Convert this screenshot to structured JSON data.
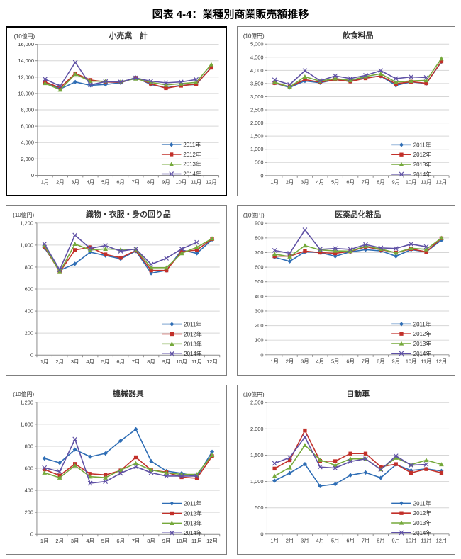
{
  "page": {
    "title": "図表 4-4：業種別商業販売額推移"
  },
  "palette": {
    "y2011": "#2E6DB5",
    "y2012": "#C2302A",
    "y2013": "#75A93B",
    "y2014": "#5F51A5",
    "grid": "#D6D6D6",
    "axis": "#8C8C8C",
    "tick_text": "#333333"
  },
  "legend_labels": [
    "2011年",
    "2012年",
    "2013年",
    "2014年"
  ],
  "chart_data": [
    {
      "type": "line",
      "title": "小売業　計",
      "unit": "(10億円)",
      "categories": [
        "1月",
        "2月",
        "3月",
        "4月",
        "5月",
        "6月",
        "7月",
        "8月",
        "9月",
        "10月",
        "11月",
        "12月"
      ],
      "y_min": 0,
      "y_max": 16000,
      "y_step": 2000,
      "grid": true,
      "legend_position": "bottom-right",
      "series": [
        {
          "name": "2011年",
          "marker": "diamond",
          "color_key": "y2011",
          "values": [
            11350,
            10550,
            11400,
            11000,
            11100,
            11300,
            11950,
            11100,
            10700,
            11000,
            11100,
            13200
          ]
        },
        {
          "name": "2012年",
          "marker": "square",
          "color_key": "y2012",
          "values": [
            11400,
            10700,
            12450,
            11650,
            11400,
            11350,
            11900,
            11200,
            10650,
            10950,
            11150,
            13150
          ]
        },
        {
          "name": "2013年",
          "marker": "triangle",
          "color_key": "y2013",
          "values": [
            11250,
            10450,
            12350,
            11500,
            11500,
            11450,
            11800,
            11350,
            11050,
            11200,
            11350,
            13550
          ]
        },
        {
          "name": "2014年",
          "marker": "x",
          "color_key": "y2014",
          "values": [
            11750,
            10900,
            13800,
            11050,
            11450,
            11400,
            11900,
            11500,
            11300,
            11400,
            11700,
            null
          ]
        }
      ]
    },
    {
      "type": "line",
      "title": "飲食料品",
      "unit": "(10億円)",
      "categories": [
        "1月",
        "2月",
        "3月",
        "4月",
        "5月",
        "6月",
        "7月",
        "8月",
        "9月",
        "10月",
        "11月",
        "12月"
      ],
      "y_min": 0,
      "y_max": 5000,
      "y_step": 500,
      "grid": true,
      "legend_position": "bottom-right",
      "series": [
        {
          "name": "2011年",
          "marker": "diamond",
          "color_key": "y2011",
          "values": [
            3520,
            3350,
            3600,
            3530,
            3650,
            3580,
            3730,
            3780,
            3430,
            3560,
            3500,
            4330
          ]
        },
        {
          "name": "2012年",
          "marker": "square",
          "color_key": "y2012",
          "values": [
            3520,
            3380,
            3650,
            3550,
            3650,
            3580,
            3700,
            3790,
            3490,
            3570,
            3510,
            4340
          ]
        },
        {
          "name": "2013年",
          "marker": "triangle",
          "color_key": "y2013",
          "values": [
            3550,
            3370,
            3760,
            3590,
            3690,
            3620,
            3770,
            3870,
            3550,
            3600,
            3620,
            4450
          ]
        },
        {
          "name": "2014年",
          "marker": "x",
          "color_key": "y2014",
          "values": [
            3640,
            3460,
            3990,
            3610,
            3790,
            3690,
            3810,
            3990,
            3690,
            3750,
            3730,
            null
          ]
        }
      ]
    },
    {
      "type": "line",
      "title": "織物・衣服・身の回り品",
      "unit": "(10億円)",
      "categories": [
        "1月",
        "2月",
        "3月",
        "4月",
        "5月",
        "6月",
        "7月",
        "8月",
        "9月",
        "10月",
        "11月",
        "12月"
      ],
      "y_min": 0,
      "y_max": 1200,
      "y_step": 200,
      "grid": true,
      "legend_position": "bottom-right",
      "series": [
        {
          "name": "2011年",
          "marker": "diamond",
          "color_key": "y2011",
          "values": [
            975,
            770,
            830,
            935,
            905,
            875,
            945,
            745,
            770,
            955,
            925,
            1050
          ]
        },
        {
          "name": "2012年",
          "marker": "square",
          "color_key": "y2012",
          "values": [
            985,
            755,
            955,
            980,
            915,
            885,
            950,
            770,
            770,
            940,
            955,
            1055
          ]
        },
        {
          "name": "2013年",
          "marker": "triangle",
          "color_key": "y2013",
          "values": [
            995,
            755,
            1010,
            955,
            965,
            960,
            960,
            795,
            795,
            925,
            980,
            1060
          ]
        },
        {
          "name": "2014年",
          "marker": "x",
          "color_key": "y2014",
          "values": [
            1010,
            775,
            1090,
            970,
            995,
            945,
            965,
            825,
            880,
            965,
            1025,
            null
          ]
        }
      ]
    },
    {
      "type": "line",
      "title": "医薬品化粧品",
      "unit": "(10億円)",
      "categories": [
        "1月",
        "2月",
        "3月",
        "4月",
        "5月",
        "6月",
        "7月",
        "8月",
        "9月",
        "10月",
        "11月",
        "12月"
      ],
      "y_min": 0,
      "y_max": 900,
      "y_step": 100,
      "grid": true,
      "legend_position": "bottom-right",
      "series": [
        {
          "name": "2011年",
          "marker": "diamond",
          "color_key": "y2011",
          "values": [
            668,
            640,
            705,
            700,
            675,
            705,
            720,
            712,
            675,
            720,
            705,
            785
          ]
        },
        {
          "name": "2012年",
          "marker": "square",
          "color_key": "y2012",
          "values": [
            675,
            675,
            710,
            700,
            695,
            708,
            740,
            720,
            700,
            725,
            705,
            798
          ]
        },
        {
          "name": "2013年",
          "marker": "triangle",
          "color_key": "y2013",
          "values": [
            690,
            672,
            748,
            718,
            712,
            710,
            745,
            725,
            698,
            730,
            722,
            800
          ]
        },
        {
          "name": "2014年",
          "marker": "x",
          "color_key": "y2014",
          "values": [
            715,
            695,
            855,
            722,
            728,
            722,
            755,
            732,
            728,
            758,
            740,
            null
          ]
        }
      ]
    },
    {
      "type": "line",
      "title": "機械器具",
      "unit": "(10億円)",
      "categories": [
        "1月",
        "2月",
        "3月",
        "4月",
        "5月",
        "6月",
        "7月",
        "8月",
        "9月",
        "10月",
        "11月",
        "12月"
      ],
      "y_min": 0,
      "y_max": 1200,
      "y_step": 200,
      "grid": true,
      "legend_position": "bottom-right",
      "series": [
        {
          "name": "2011年",
          "marker": "diamond",
          "color_key": "y2011",
          "values": [
            690,
            650,
            770,
            705,
            735,
            850,
            955,
            665,
            575,
            555,
            525,
            750
          ]
        },
        {
          "name": "2012年",
          "marker": "square",
          "color_key": "y2012",
          "values": [
            590,
            535,
            640,
            550,
            540,
            580,
            700,
            585,
            565,
            520,
            510,
            710
          ]
        },
        {
          "name": "2013年",
          "marker": "triangle",
          "color_key": "y2013",
          "values": [
            560,
            515,
            625,
            525,
            515,
            585,
            645,
            585,
            560,
            545,
            545,
            720
          ]
        },
        {
          "name": "2014年",
          "marker": "x",
          "color_key": "y2014",
          "values": [
            605,
            570,
            865,
            465,
            480,
            555,
            615,
            560,
            530,
            530,
            530,
            null
          ]
        }
      ]
    },
    {
      "type": "line",
      "title": "自動車",
      "unit": "(10億円)",
      "categories": [
        "1月",
        "2月",
        "3月",
        "4月",
        "5月",
        "6月",
        "7月",
        "8月",
        "9月",
        "10月",
        "11月",
        "12月"
      ],
      "y_min": 0,
      "y_max": 2500,
      "y_step": 500,
      "grid": true,
      "legend_position": "bottom-right",
      "series": [
        {
          "name": "2011年",
          "marker": "diamond",
          "color_key": "y2011",
          "values": [
            1015,
            1160,
            1330,
            915,
            950,
            1120,
            1170,
            1070,
            1320,
            1210,
            1240,
            1200
          ]
        },
        {
          "name": "2012年",
          "marker": "square",
          "color_key": "y2012",
          "values": [
            1245,
            1405,
            1970,
            1390,
            1385,
            1530,
            1530,
            1280,
            1330,
            1165,
            1235,
            1165
          ]
        },
        {
          "name": "2013年",
          "marker": "triangle",
          "color_key": "y2013",
          "values": [
            1105,
            1265,
            1690,
            1410,
            1310,
            1430,
            1430,
            1230,
            1450,
            1320,
            1405,
            1325
          ]
        },
        {
          "name": "2014年",
          "marker": "x",
          "color_key": "y2014",
          "values": [
            1345,
            1455,
            1845,
            1275,
            1255,
            1380,
            1430,
            1225,
            1485,
            1310,
            1325,
            null
          ]
        }
      ]
    }
  ]
}
